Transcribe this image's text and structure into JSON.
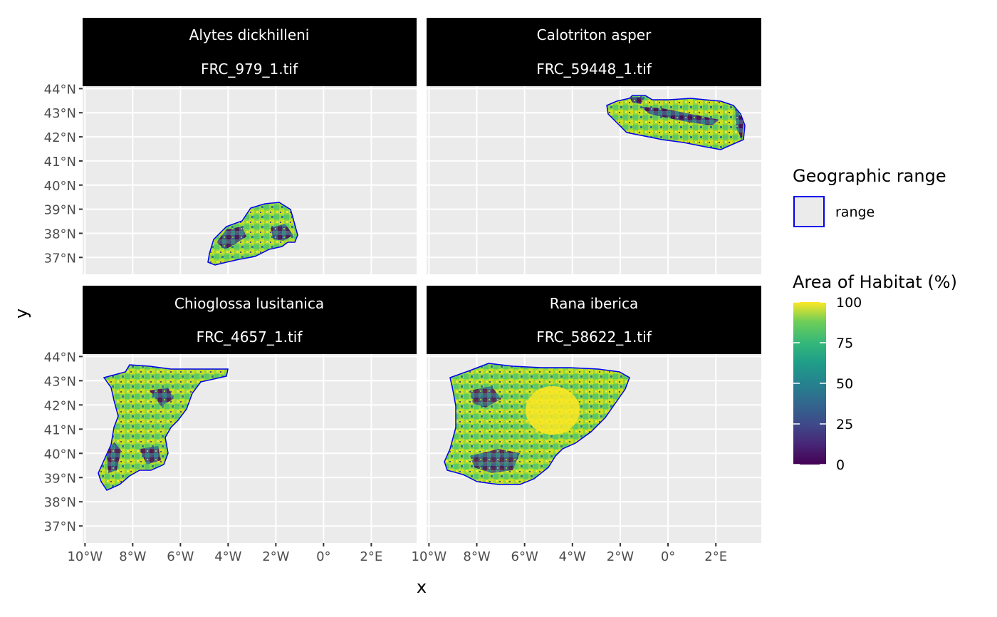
{
  "panels": [
    {
      "species": "Alytes dickhilleni",
      "file": "FRC_979_1.tif"
    },
    {
      "species": "Calotriton asper",
      "file": "FRC_59448_1.tif"
    },
    {
      "species": "Chioglossa lusitanica",
      "file": "FRC_4657_1.tif"
    },
    {
      "species": "Rana iberica",
      "file": "FRC_58622_1.tif"
    }
  ],
  "axes": {
    "xlabel": "x",
    "ylabel": "y",
    "x_ticks": [
      "10°W",
      "8°W",
      "6°W",
      "4°W",
      "2°W",
      "0°",
      "2°E"
    ],
    "y_ticks": [
      "37°N",
      "38°N",
      "39°N",
      "40°N",
      "41°N",
      "42°N",
      "43°N",
      "44°N"
    ],
    "x_values": [
      -10,
      -8,
      -6,
      -4,
      -2,
      0,
      2
    ],
    "y_values": [
      37,
      38,
      39,
      40,
      41,
      42,
      43,
      44
    ],
    "xlim": [
      -10.1,
      3.9
    ],
    "ylim": [
      36.3,
      44.1
    ]
  },
  "legend": {
    "range_title": "Geographic range",
    "range_label": "range",
    "range_color": "#0000ee",
    "habitat_title": "Area of Habitat (%)",
    "habitat_ticks": [
      "0",
      "25",
      "50",
      "75",
      "100"
    ],
    "habitat_tick_values": [
      0,
      25,
      50,
      75,
      100
    ],
    "colormap": "viridis"
  },
  "colors": {
    "panel_background": "#ebebeb",
    "strip_background": "#000000",
    "strip_text": "#ffffff",
    "grid": "#ffffff",
    "range_outline": "#0000ee"
  }
}
